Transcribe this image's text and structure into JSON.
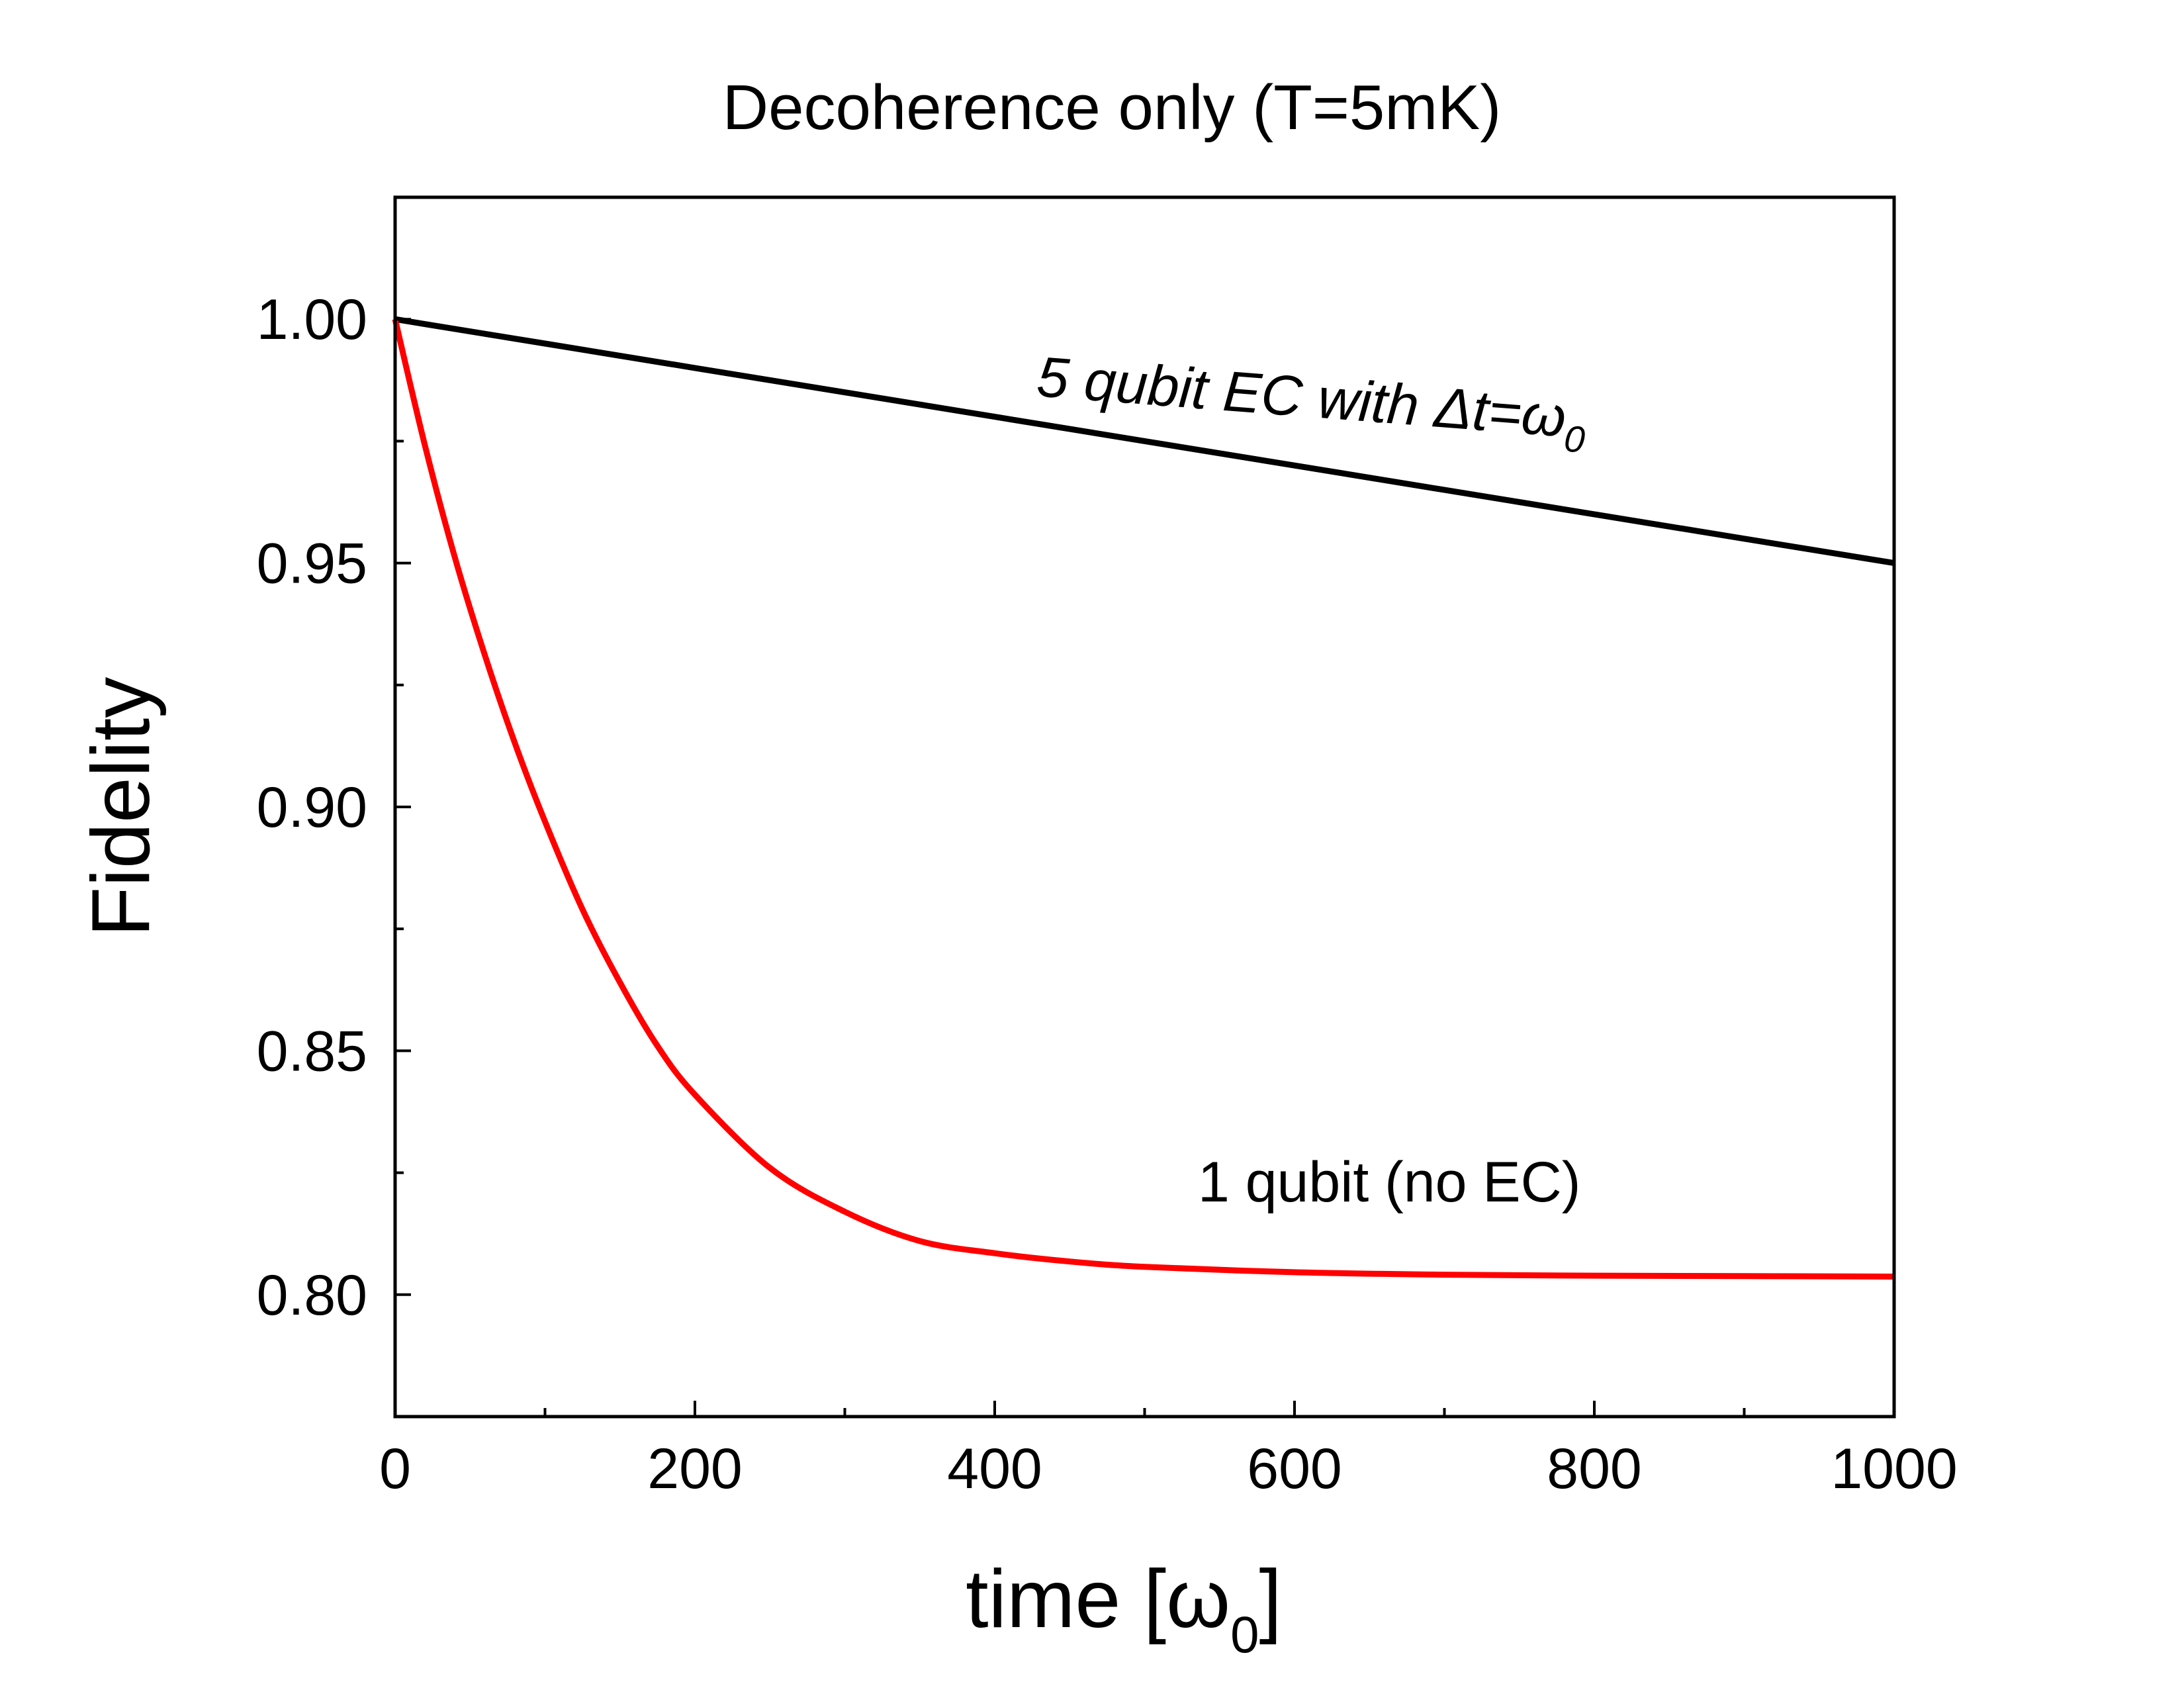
{
  "chart_data": {
    "type": "line",
    "title": "Decoherence only (T=5mK)",
    "xlabel": {
      "main": "time [ω",
      "sub": "0",
      "close": "]"
    },
    "ylabel": "Fidelity",
    "xlim": [
      0,
      1000
    ],
    "ylim": [
      0.775,
      1.025
    ],
    "xticks": [
      {
        "value": 0,
        "label": "0"
      },
      {
        "value": 200,
        "label": "200"
      },
      {
        "value": 400,
        "label": "400"
      },
      {
        "value": 600,
        "label": "600"
      },
      {
        "value": 800,
        "label": "800"
      },
      {
        "value": 1000,
        "label": "1000"
      }
    ],
    "yticks": [
      {
        "value": 0.8,
        "label": "0.80"
      },
      {
        "value": 0.85,
        "label": "0.85"
      },
      {
        "value": 0.9,
        "label": "0.90"
      },
      {
        "value": 0.95,
        "label": "0.95"
      },
      {
        "value": 1.0,
        "label": "1.00"
      }
    ],
    "x_minor_step": 100,
    "y_minor_step": 0.025,
    "grid": false,
    "series": [
      {
        "name": "5 qubit EC with Δt=ω0",
        "color": "#000000",
        "x": [
          0,
          100,
          200,
          300,
          400,
          500,
          600,
          700,
          800,
          900,
          1000
        ],
        "values": [
          1.0,
          0.995,
          0.99,
          0.985,
          0.98,
          0.975,
          0.97,
          0.965,
          0.96,
          0.955,
          0.95
        ]
      },
      {
        "name": "1 qubit (no EC)",
        "color": "#ff0000",
        "x": [
          0,
          20,
          40,
          60,
          80,
          100,
          125,
          150,
          175,
          200,
          250,
          300,
          350,
          400,
          450,
          500,
          600,
          700,
          800,
          900,
          1000
        ],
        "values": [
          1.0,
          0.974,
          0.951,
          0.931,
          0.913,
          0.897,
          0.879,
          0.864,
          0.851,
          0.841,
          0.826,
          0.817,
          0.811,
          0.8085,
          0.8068,
          0.8057,
          0.8046,
          0.8041,
          0.8039,
          0.8038,
          0.8037
        ]
      }
    ],
    "annotations": [
      {
        "series": 0,
        "prefix": "5 qubit EC with ",
        "symbol": "Δt=ω",
        "sub": "0"
      },
      {
        "series": 1,
        "text": "1 qubit (no EC)"
      }
    ]
  }
}
